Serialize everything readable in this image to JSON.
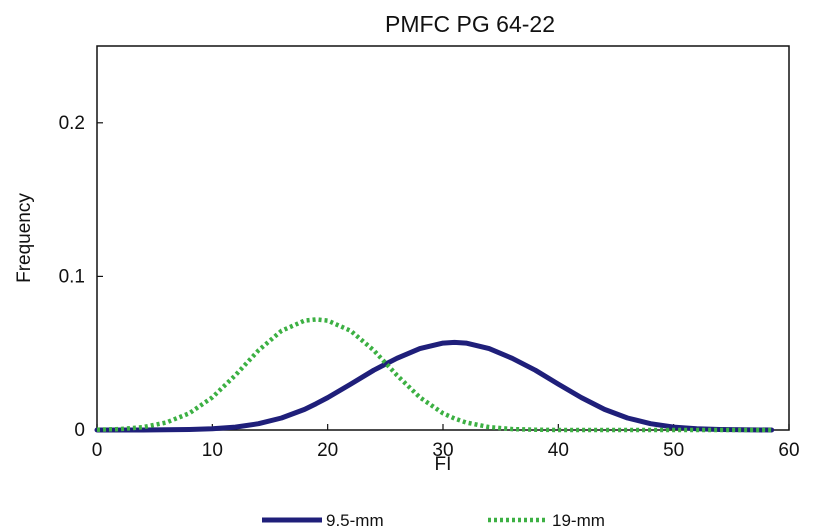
{
  "chart_data": {
    "type": "line",
    "title": "PMFC PG 64-22",
    "xlabel": "FI",
    "ylabel": "Frequency",
    "xlim": [
      0,
      60
    ],
    "ylim": [
      0,
      0.25
    ],
    "xticks": [
      "0",
      "10",
      "20",
      "30",
      "40",
      "50",
      "60"
    ],
    "xtick_values": [
      0,
      10,
      20,
      30,
      40,
      50,
      60
    ],
    "yticks": [
      "0",
      "0.1",
      "0.2"
    ],
    "ytick_values": [
      0,
      0.1,
      0.2
    ],
    "grid": false,
    "legend_position": "bottom",
    "x": [
      0,
      2,
      4,
      6,
      8,
      10,
      12,
      14,
      16,
      18,
      19,
      20,
      22,
      24,
      26,
      28,
      30,
      31,
      32,
      34,
      36,
      38,
      40,
      42,
      44,
      46,
      48,
      50,
      52,
      54,
      56,
      58.5
    ],
    "series": [
      {
        "name": "9.5-mm",
        "color": "#1f1f7a",
        "style": "solid",
        "values": [
          0.0,
          0.0,
          0.0,
          0.0001,
          0.0003,
          0.0008,
          0.0019,
          0.0041,
          0.0078,
          0.0134,
          0.0171,
          0.0211,
          0.0299,
          0.0389,
          0.0467,
          0.053,
          0.0566,
          0.057,
          0.0566,
          0.053,
          0.0467,
          0.0389,
          0.0299,
          0.0211,
          0.0134,
          0.0078,
          0.0041,
          0.0019,
          0.0008,
          0.0003,
          0.0001,
          0.0
        ]
      },
      {
        "name": "19-mm",
        "color": "#3cb043",
        "style": "dotted",
        "values": [
          0.0002,
          0.0006,
          0.0019,
          0.0049,
          0.0109,
          0.0212,
          0.0357,
          0.0518,
          0.0646,
          0.0712,
          0.072,
          0.0712,
          0.0646,
          0.0518,
          0.0357,
          0.0212,
          0.0109,
          0.0075,
          0.0049,
          0.0019,
          0.0006,
          0.0002,
          0.0,
          0.0,
          0.0,
          0.0,
          0.0,
          0.0,
          0.0,
          0.0,
          0.0,
          0.0
        ]
      }
    ]
  }
}
